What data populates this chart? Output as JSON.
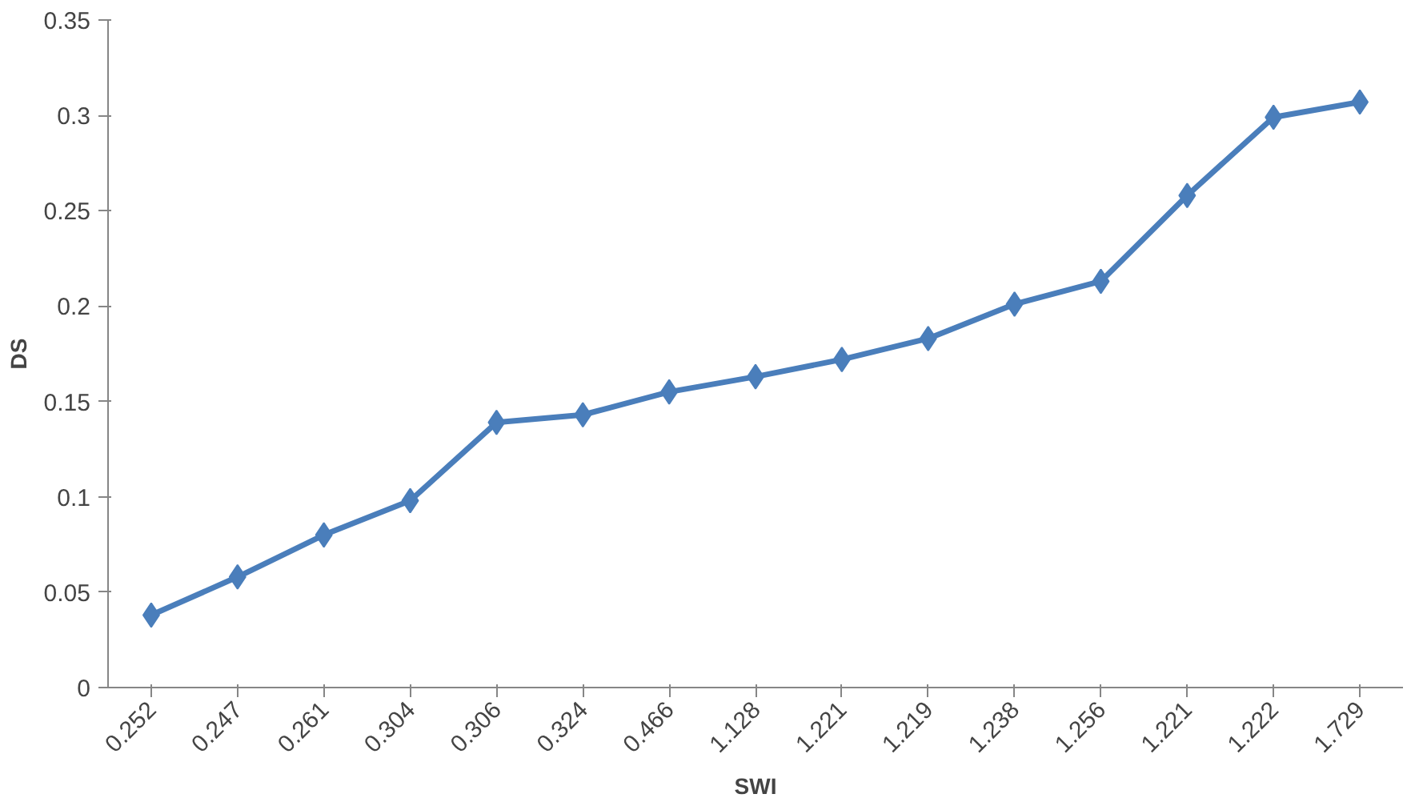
{
  "chart_data": {
    "type": "line",
    "xlabel": "SWI",
    "ylabel": "DS",
    "categories": [
      "0.252",
      "0.247",
      "0.261",
      "0.304",
      "0.306",
      "0.324",
      "0.466",
      "1.128",
      "1.221",
      "1.219",
      "1.238",
      "1.256",
      "1.221",
      "1.222",
      "1.729"
    ],
    "series": [
      {
        "color": "#4a7ebb",
        "values": [
          0.038,
          0.058,
          0.08,
          0.098,
          0.139,
          0.143,
          0.155,
          0.163,
          0.172,
          0.183,
          0.201,
          0.213,
          0.258,
          0.299,
          0.307
        ]
      }
    ],
    "ylim": [
      0,
      0.35
    ],
    "yticks": [
      0,
      0.05,
      0.1,
      0.15,
      0.2,
      0.25,
      0.3,
      0.35
    ],
    "grid": false,
    "marker": "diamond",
    "line_style": "solid"
  }
}
